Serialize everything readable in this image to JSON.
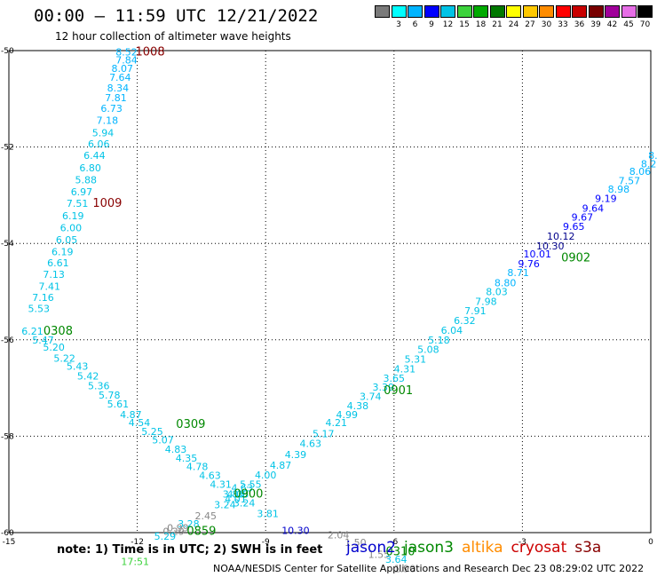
{
  "header": {
    "title": "00:00 – 11:59 UTC 12/21/2022",
    "subtitle": "12 hour collection of altimeter wave heights"
  },
  "scale": {
    "unit": "(ft)",
    "items": [
      {
        "label": "",
        "color": "#7a7a7a"
      },
      {
        "label": "3",
        "color": "#00ffff"
      },
      {
        "label": "6",
        "color": "#00b4ff"
      },
      {
        "label": "9",
        "color": "#0000ff"
      },
      {
        "label": "12",
        "color": "#00c3e6"
      },
      {
        "label": "15",
        "color": "#3cd23c"
      },
      {
        "label": "18",
        "color": "#00aa00"
      },
      {
        "label": "21",
        "color": "#007800"
      },
      {
        "label": "24",
        "color": "#ffff00"
      },
      {
        "label": "27",
        "color": "#ffc800"
      },
      {
        "label": "30",
        "color": "#ff8c00"
      },
      {
        "label": "33",
        "color": "#ff0000"
      },
      {
        "label": "36",
        "color": "#c80000"
      },
      {
        "label": "39",
        "color": "#780000"
      },
      {
        "label": "42",
        "color": "#a0009a"
      },
      {
        "label": "45",
        "color": "#e66ee6"
      },
      {
        "label": "70",
        "color": "#000000"
      }
    ]
  },
  "chart_data": {
    "type": "scatter",
    "title": "00:00 – 11:59 UTC 12/21/2022",
    "subtitle": "12 hour collection of altimeter wave heights",
    "xlim": [
      -15,
      0
    ],
    "ylim": [
      -60,
      -50
    ],
    "x_ticks": [
      -15,
      -12,
      -9,
      -6,
      -3,
      0
    ],
    "y_ticks": [
      -50,
      -52,
      -54,
      -56,
      -58,
      -60
    ],
    "x_tick_labels": [
      "-15",
      "-12",
      "-9",
      "-6",
      "-3",
      "0"
    ],
    "y_tick_labels": [
      "-50",
      "-52",
      "-54",
      "-56",
      "-58",
      "-60"
    ],
    "grid": true,
    "series": [
      {
        "name": "jason2",
        "color": "#0000cc"
      },
      {
        "name": "jason3",
        "color": "#008800"
      },
      {
        "name": "altika",
        "color": "#ff8c00"
      },
      {
        "name": "cryosat",
        "color": "#cc0000"
      },
      {
        "name": "s3a",
        "color": "#880000"
      }
    ],
    "swh_points": [
      {
        "x": -12.25,
        "y": -50.03,
        "label": "8.52",
        "color": "#00b4ff"
      },
      {
        "x": -12.25,
        "y": -50.19,
        "label": "7.84",
        "color": "#00b4ff"
      },
      {
        "x": -12.35,
        "y": -50.37,
        "label": "8.07",
        "color": "#00b4ff"
      },
      {
        "x": -12.4,
        "y": -50.55,
        "label": "7.64",
        "color": "#00b4ff"
      },
      {
        "x": -12.45,
        "y": -50.77,
        "label": "8.34",
        "color": "#00b4ff"
      },
      {
        "x": -12.5,
        "y": -50.98,
        "label": "7.81",
        "color": "#00b4ff"
      },
      {
        "x": -12.6,
        "y": -51.2,
        "label": "6.73",
        "color": "#00b4ff"
      },
      {
        "x": -12.7,
        "y": -51.45,
        "label": "7.18",
        "color": "#00b4ff"
      },
      {
        "x": -12.8,
        "y": -51.7,
        "label": "5.94",
        "color": "#00c3e6"
      },
      {
        "x": -12.9,
        "y": -51.93,
        "label": "6.06",
        "color": "#00c3e6"
      },
      {
        "x": -13.0,
        "y": -52.17,
        "label": "6.44",
        "color": "#00c3e6"
      },
      {
        "x": -13.1,
        "y": -52.43,
        "label": "6.80",
        "color": "#00c3e6"
      },
      {
        "x": -13.2,
        "y": -52.68,
        "label": "5.88",
        "color": "#00c3e6"
      },
      {
        "x": -13.3,
        "y": -52.93,
        "label": "6.97",
        "color": "#00c3e6"
      },
      {
        "x": -13.4,
        "y": -53.17,
        "label": "7.51",
        "color": "#00c3e6"
      },
      {
        "x": -13.5,
        "y": -53.43,
        "label": "6.19",
        "color": "#00c3e6"
      },
      {
        "x": -13.55,
        "y": -53.67,
        "label": "6.00",
        "color": "#00c3e6"
      },
      {
        "x": -13.65,
        "y": -53.92,
        "label": "6.05",
        "color": "#00c3e6"
      },
      {
        "x": -13.75,
        "y": -54.17,
        "label": "6.19",
        "color": "#00c3e6"
      },
      {
        "x": -13.85,
        "y": -54.4,
        "label": "6.61",
        "color": "#00c3e6"
      },
      {
        "x": -13.95,
        "y": -54.64,
        "label": "7.13",
        "color": "#00c3e6"
      },
      {
        "x": -14.05,
        "y": -54.89,
        "label": "7.41",
        "color": "#00c3e6"
      },
      {
        "x": -14.2,
        "y": -55.12,
        "label": "7.16",
        "color": "#00c3e6"
      },
      {
        "x": -14.3,
        "y": -55.35,
        "label": "5.53",
        "color": "#00c3e6"
      },
      {
        "x": -14.45,
        "y": -55.82,
        "label": "6.21",
        "color": "#00c3e6"
      },
      {
        "x": -14.2,
        "y": -56.0,
        "label": "5.47",
        "color": "#00c3e6"
      },
      {
        "x": -13.95,
        "y": -56.15,
        "label": "5.20",
        "color": "#00c3e6"
      },
      {
        "x": -13.7,
        "y": -56.38,
        "label": "5.22",
        "color": "#00c3e6"
      },
      {
        "x": -13.4,
        "y": -56.55,
        "label": "5.43",
        "color": "#00c3e6"
      },
      {
        "x": -13.15,
        "y": -56.75,
        "label": "5.42",
        "color": "#00c3e6"
      },
      {
        "x": -12.9,
        "y": -56.95,
        "label": "5.36",
        "color": "#00c3e6"
      },
      {
        "x": -12.65,
        "y": -57.15,
        "label": "5.78",
        "color": "#00c3e6"
      },
      {
        "x": -12.45,
        "y": -57.33,
        "label": "5.61",
        "color": "#00c3e6"
      },
      {
        "x": -12.15,
        "y": -57.55,
        "label": "4.87",
        "color": "#00c3e6"
      },
      {
        "x": -11.95,
        "y": -57.72,
        "label": "4.54",
        "color": "#00c3e6"
      },
      {
        "x": -11.65,
        "y": -57.9,
        "label": "5.25",
        "color": "#00c3e6"
      },
      {
        "x": -11.4,
        "y": -58.08,
        "label": "5.07",
        "color": "#00c3e6"
      },
      {
        "x": -11.1,
        "y": -58.27,
        "label": "4.83",
        "color": "#00c3e6"
      },
      {
        "x": -10.85,
        "y": -58.45,
        "label": "4.35",
        "color": "#00c3e6"
      },
      {
        "x": -10.6,
        "y": -58.63,
        "label": "4.78",
        "color": "#00c3e6"
      },
      {
        "x": -10.3,
        "y": -58.81,
        "label": "4.63",
        "color": "#00c3e6"
      },
      {
        "x": -10.05,
        "y": -59.0,
        "label": "4.31",
        "color": "#00c3e6"
      },
      {
        "x": -9.75,
        "y": -59.2,
        "label": "3.86",
        "color": "#00c3e6"
      },
      {
        "x": -9.5,
        "y": -59.38,
        "label": "3.24",
        "color": "#00c3e6"
      },
      {
        "x": -9.55,
        "y": -59.07,
        "label": "4.63",
        "color": "#00c3e6"
      },
      {
        "x": -9.65,
        "y": -59.2,
        "label": "4.08",
        "color": "#00c3e6"
      },
      {
        "x": -9.7,
        "y": -59.3,
        "label": "4.01",
        "color": "#00c3e6"
      },
      {
        "x": -9.95,
        "y": -59.42,
        "label": "3.24",
        "color": "#00c3e6"
      },
      {
        "x": -10.4,
        "y": -59.65,
        "label": "2.45",
        "color": "#888888"
      },
      {
        "x": -10.8,
        "y": -59.82,
        "label": "3.28",
        "color": "#00c3e6"
      },
      {
        "x": -11.05,
        "y": -59.9,
        "label": "0.99",
        "color": "#888888"
      },
      {
        "x": -11.15,
        "y": -59.97,
        "label": "0.29",
        "color": "#888888"
      },
      {
        "x": -11.35,
        "y": -60.07,
        "label": "5.29",
        "color": "#00c3e6"
      },
      {
        "x": -8.95,
        "y": -59.6,
        "label": "3.81",
        "color": "#00c3e6"
      },
      {
        "x": -9.35,
        "y": -59.0,
        "label": "5.55",
        "color": "#00c3e6"
      },
      {
        "x": -9.0,
        "y": -58.8,
        "label": "4.00",
        "color": "#00c3e6"
      },
      {
        "x": -8.65,
        "y": -58.6,
        "label": "4.87",
        "color": "#00c3e6"
      },
      {
        "x": -8.3,
        "y": -58.38,
        "label": "4.39",
        "color": "#00c3e6"
      },
      {
        "x": -7.95,
        "y": -58.15,
        "label": "4.63",
        "color": "#00c3e6"
      },
      {
        "x": -7.65,
        "y": -57.95,
        "label": "5.17",
        "color": "#00c3e6"
      },
      {
        "x": -7.35,
        "y": -57.72,
        "label": "4.21",
        "color": "#00c3e6"
      },
      {
        "x": -7.1,
        "y": -57.55,
        "label": "4.99",
        "color": "#00c3e6"
      },
      {
        "x": -6.85,
        "y": -57.37,
        "label": "4.38",
        "color": "#00c3e6"
      },
      {
        "x": -6.55,
        "y": -57.17,
        "label": "3.74",
        "color": "#00c3e6"
      },
      {
        "x": -6.25,
        "y": -56.98,
        "label": "3.39",
        "color": "#00c3e6"
      },
      {
        "x": -6.0,
        "y": -56.8,
        "label": "3.65",
        "color": "#00c3e6"
      },
      {
        "x": -5.75,
        "y": -56.6,
        "label": "4.31",
        "color": "#00c3e6"
      },
      {
        "x": -5.5,
        "y": -56.4,
        "label": "5.31",
        "color": "#00c3e6"
      },
      {
        "x": -5.2,
        "y": -56.2,
        "label": "5.08",
        "color": "#00c3e6"
      },
      {
        "x": -4.95,
        "y": -56.0,
        "label": "5.18",
        "color": "#00c3e6"
      },
      {
        "x": -4.65,
        "y": -55.8,
        "label": "6.04",
        "color": "#00c3e6"
      },
      {
        "x": -4.35,
        "y": -55.6,
        "label": "6.32",
        "color": "#00c3e6"
      },
      {
        "x": -4.1,
        "y": -55.4,
        "label": "7.91",
        "color": "#00c3e6"
      },
      {
        "x": -3.85,
        "y": -55.2,
        "label": "7.98",
        "color": "#00c3e6"
      },
      {
        "x": -3.6,
        "y": -55.0,
        "label": "8.03",
        "color": "#00c3e6"
      },
      {
        "x": -3.4,
        "y": -54.82,
        "label": "8.80",
        "color": "#00b4ff"
      },
      {
        "x": -3.1,
        "y": -54.6,
        "label": "8.71",
        "color": "#00b4ff"
      },
      {
        "x": -2.85,
        "y": -54.42,
        "label": "9.76",
        "color": "#0000ff"
      },
      {
        "x": -2.65,
        "y": -54.22,
        "label": "10.01",
        "color": "#0000ff"
      },
      {
        "x": -2.35,
        "y": -54.05,
        "label": "10.30",
        "color": "#00008b"
      },
      {
        "x": -2.1,
        "y": -53.85,
        "label": "10.12",
        "color": "#00008b"
      },
      {
        "x": -1.8,
        "y": -53.65,
        "label": "9.65",
        "color": "#0000ff"
      },
      {
        "x": -1.6,
        "y": -53.45,
        "label": "9.67",
        "color": "#0000ff"
      },
      {
        "x": -1.35,
        "y": -53.27,
        "label": "9.64",
        "color": "#0000ff"
      },
      {
        "x": -1.05,
        "y": -53.07,
        "label": "9.19",
        "color": "#0000ff"
      },
      {
        "x": -0.75,
        "y": -52.87,
        "label": "8.98",
        "color": "#00b4ff"
      },
      {
        "x": -0.5,
        "y": -52.7,
        "label": "7.57",
        "color": "#00b4ff"
      },
      {
        "x": -0.25,
        "y": -52.5,
        "label": "8.06",
        "color": "#00b4ff"
      },
      {
        "x": -0.05,
        "y": -52.35,
        "label": "8.2",
        "color": "#00b4ff"
      },
      {
        "x": 0.05,
        "y": -52.17,
        "label": "8.",
        "color": "#00b4ff"
      },
      {
        "x": -8.3,
        "y": -59.95,
        "label": "10.30",
        "color": "#0000cc"
      },
      {
        "x": -7.3,
        "y": -60.05,
        "label": "2.04",
        "color": "#888888"
      },
      {
        "x": -6.9,
        "y": -60.2,
        "label": "1.50",
        "color": "#888888"
      },
      {
        "x": -6.35,
        "y": -60.45,
        "label": "1.55",
        "color": "#888888"
      },
      {
        "x": -5.95,
        "y": -60.55,
        "label": "3.64",
        "color": "#00c3e6"
      },
      {
        "x": -5.75,
        "y": -60.75,
        "label": "1.90",
        "color": "#888888"
      }
    ],
    "time_points": [
      {
        "x": -11.7,
        "y": -50.03,
        "label": "1008",
        "color": "#880000"
      },
      {
        "x": -12.7,
        "y": -53.17,
        "label": "1009",
        "color": "#880000"
      },
      {
        "x": -13.85,
        "y": -55.82,
        "label": "0308",
        "color": "#008800"
      },
      {
        "x": -10.75,
        "y": -57.75,
        "label": "0309",
        "color": "#008800"
      },
      {
        "x": -9.4,
        "y": -59.2,
        "label": "0900",
        "color": "#008800"
      },
      {
        "x": -10.5,
        "y": -59.97,
        "label": "0859",
        "color": "#008800"
      },
      {
        "x": -5.9,
        "y": -57.05,
        "label": "0901",
        "color": "#008800"
      },
      {
        "x": -1.75,
        "y": -54.3,
        "label": "0902",
        "color": "#008800"
      },
      {
        "x": -5.85,
        "y": -60.4,
        "label": "0310",
        "color": "#008800"
      },
      {
        "x": -12.05,
        "y": -60.6,
        "label": "17:51",
        "color": "#3cd23c"
      }
    ]
  },
  "footer": {
    "note": "note: 1) Time is in UTC; 2) SWH is in feet",
    "credit": "NOAA/NESDIS Center for Satellite Applications and Research    Dec 23 08:29:02 UTC 2022"
  }
}
